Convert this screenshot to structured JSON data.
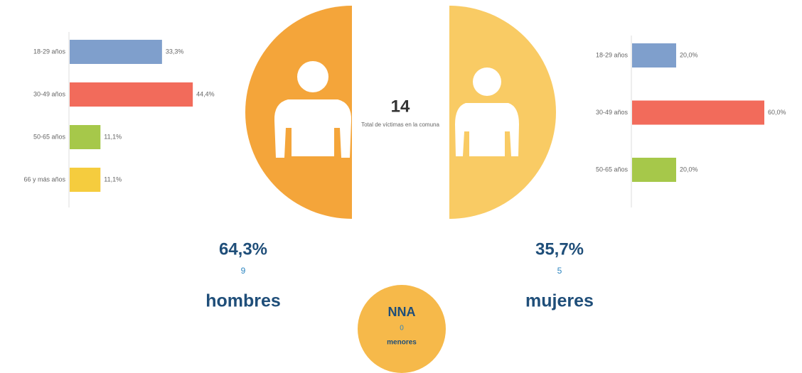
{
  "chart_data": [
    {
      "type": "bar",
      "orientation": "horizontal",
      "categories": [
        "18-29 años",
        "30-49 años",
        "50-65 años",
        "66 y más años"
      ],
      "values": [
        33.3,
        44.4,
        11.1,
        11.1
      ],
      "value_labels": [
        "33,3%",
        "44,4%",
        "11,1%",
        "11,1%"
      ],
      "colors": [
        "#7f9fcc",
        "#f26b5b",
        "#a6c84a",
        "#f5cc3e"
      ]
    },
    {
      "type": "bar",
      "orientation": "horizontal",
      "categories": [
        "18-29 años",
        "30-49 años",
        "50-65 años"
      ],
      "values": [
        20.0,
        60.0,
        20.0
      ],
      "value_labels": [
        "20,0%",
        "60,0%",
        "20,0%"
      ],
      "colors": [
        "#7f9fcc",
        "#f26b5b",
        "#a6c84a"
      ]
    }
  ],
  "total": {
    "value": "14",
    "label": "Total de víctimas en la comuna"
  },
  "men": {
    "percent": "64,3%",
    "count": "9",
    "label": "hombres"
  },
  "women": {
    "percent": "35,7%",
    "count": "5",
    "label": "mujeres"
  },
  "minors": {
    "title": "NNA",
    "count": "0",
    "label": "menores"
  }
}
